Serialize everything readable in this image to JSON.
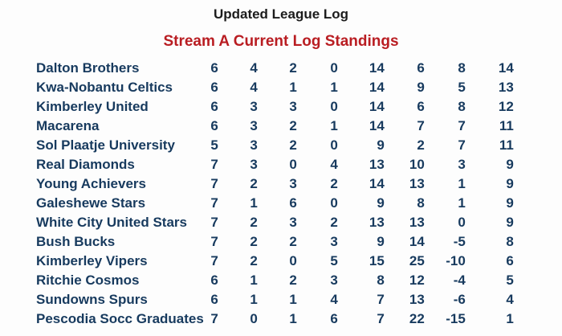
{
  "header": {
    "title": "Updated League Log",
    "subtitle": "Stream A Current Log Standings"
  },
  "colors": {
    "background": "#fdfdfd",
    "title_text": "#1c1c1c",
    "subtitle_text": "#b91d22",
    "table_text": "#173a5e"
  },
  "standings": {
    "rows": [
      {
        "team": "Dalton Brothers",
        "stats": [
          "6",
          "4",
          "2",
          "0",
          "14",
          "6",
          "8",
          "14"
        ]
      },
      {
        "team": "Kwa-Nobantu Celtics",
        "stats": [
          "6",
          "4",
          "1",
          "1",
          "14",
          "9",
          "5",
          "13"
        ]
      },
      {
        "team": "Kimberley United",
        "stats": [
          "6",
          "3",
          "3",
          "0",
          "14",
          "6",
          "8",
          "12"
        ]
      },
      {
        "team": "Macarena",
        "stats": [
          "6",
          "3",
          "2",
          "1",
          "14",
          "7",
          "7",
          "11"
        ]
      },
      {
        "team": "Sol Plaatje University",
        "stats": [
          "5",
          "3",
          "2",
          "0",
          "9",
          "2",
          "7",
          "11"
        ]
      },
      {
        "team": "Real Diamonds",
        "stats": [
          "7",
          "3",
          "0",
          "4",
          "13",
          "10",
          "3",
          "9"
        ]
      },
      {
        "team": "Young Achievers",
        "stats": [
          "7",
          "2",
          "3",
          "2",
          "14",
          "13",
          "1",
          "9"
        ]
      },
      {
        "team": "Galeshewe Stars",
        "stats": [
          "7",
          "1",
          "6",
          "0",
          "9",
          "8",
          "1",
          "9"
        ]
      },
      {
        "team": "White City United Stars",
        "stats": [
          "7",
          "2",
          "3",
          "2",
          "13",
          "13",
          "0",
          "9"
        ]
      },
      {
        "team": "Bush Bucks",
        "stats": [
          "7",
          "2",
          "2",
          "3",
          "9",
          "14",
          "-5",
          "8"
        ]
      },
      {
        "team": "Kimberley Vipers",
        "stats": [
          "7",
          "2",
          "0",
          "5",
          "15",
          "25",
          "-10",
          "6"
        ]
      },
      {
        "team": "Ritchie Cosmos",
        "stats": [
          "6",
          "1",
          "2",
          "3",
          "8",
          "12",
          "-4",
          "5"
        ]
      },
      {
        "team": "Sundowns Spurs",
        "stats": [
          "6",
          "1",
          "1",
          "4",
          "7",
          "13",
          "-6",
          "4"
        ]
      },
      {
        "team": "Pescodia Socc Graduates",
        "stats": [
          "7",
          "0",
          "1",
          "6",
          "7",
          "22",
          "-15",
          "1"
        ]
      }
    ]
  }
}
